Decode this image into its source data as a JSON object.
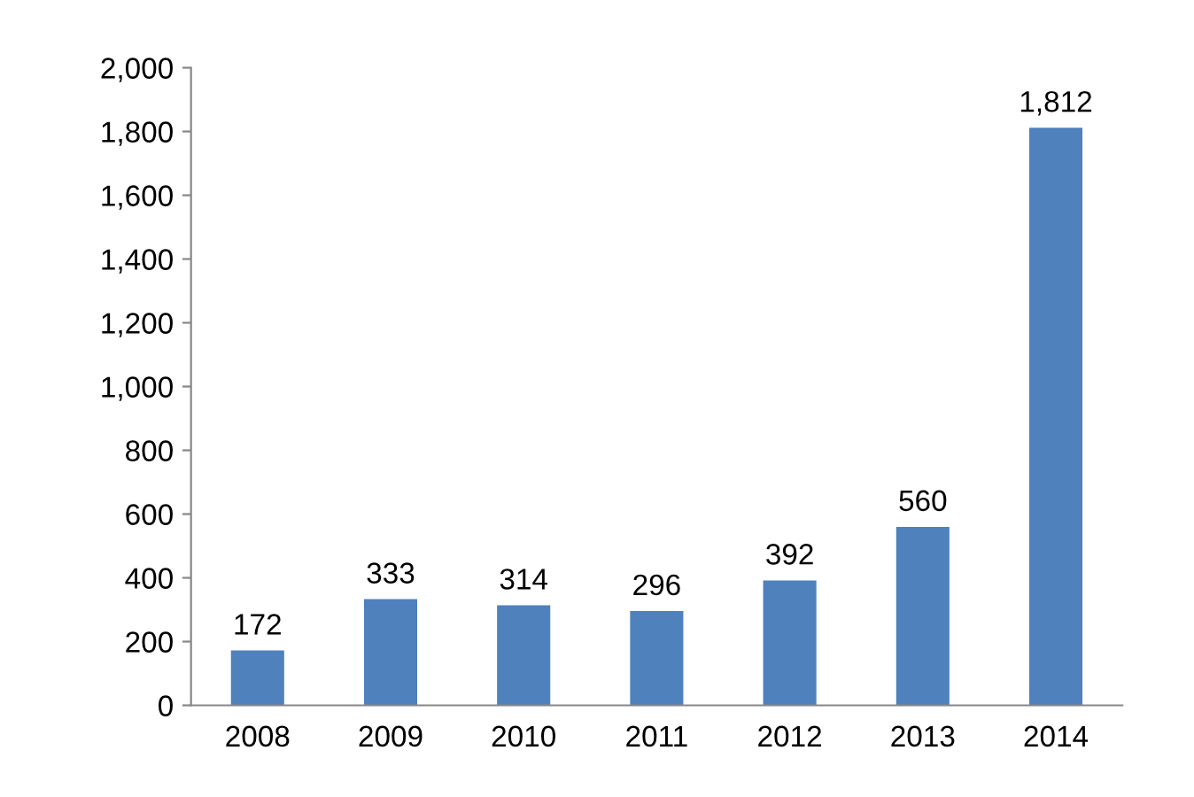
{
  "chart_data": {
    "type": "bar",
    "categories": [
      "2008",
      "2009",
      "2010",
      "2011",
      "2012",
      "2013",
      "2014"
    ],
    "values": [
      172,
      333,
      314,
      296,
      392,
      560,
      1812
    ],
    "value_labels": [
      "172",
      "333",
      "314",
      "296",
      "392",
      "560",
      "1,812"
    ],
    "color": "#4f81bd",
    "ylim": [
      0,
      2000
    ],
    "yticks": [
      0,
      200,
      400,
      600,
      800,
      {
        "value": 1000,
        "label": "1,000"
      },
      {
        "value": 1200,
        "label": "1,200"
      },
      {
        "value": 1400,
        "label": "1,400"
      },
      {
        "value": 1600,
        "label": "1,600"
      },
      {
        "value": 1800,
        "label": "1,800"
      },
      {
        "value": 2000,
        "label": "2,000"
      }
    ],
    "grid": false
  }
}
